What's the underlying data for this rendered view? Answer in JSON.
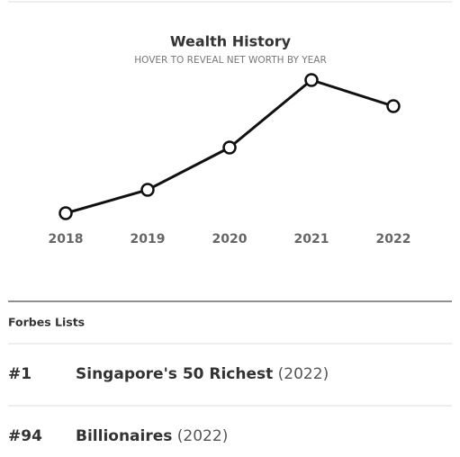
{
  "chart_data": {
    "type": "line",
    "title": "Wealth History",
    "subtitle": "HOVER TO REVEAL NET WORTH BY YEAR",
    "x": [
      "2018",
      "2019",
      "2020",
      "2021",
      "2022"
    ],
    "series": [
      {
        "color": "#111111",
        "values": [
          13,
          39,
          86,
          161,
          132
        ]
      }
    ]
  },
  "lists": {
    "heading": "Forbes Lists",
    "rows": [
      {
        "rank": "#1",
        "name": "Singapore's 50 Richest",
        "year": "(2022)"
      },
      {
        "rank": "#94",
        "name": "Billionaires",
        "year": "(2022)"
      }
    ]
  }
}
